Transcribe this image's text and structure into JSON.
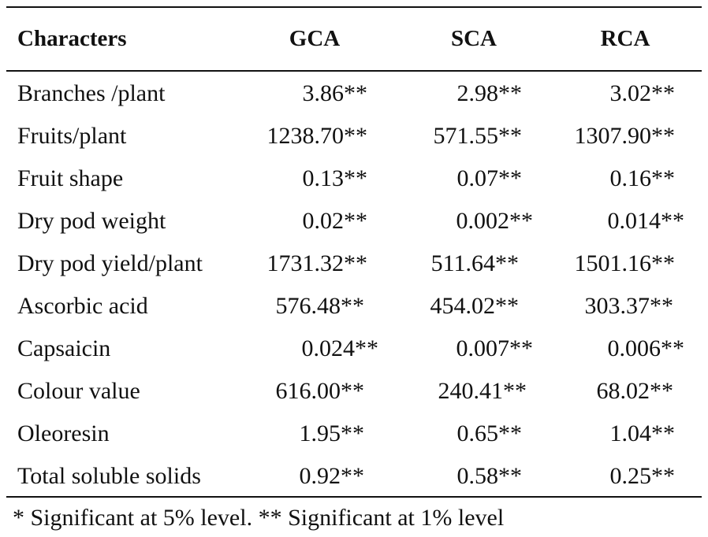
{
  "table": {
    "headers": [
      "Characters",
      "GCA",
      "SCA",
      "RCA"
    ],
    "rows": [
      [
        "Branches /plant",
        "3.86**",
        "2.98**",
        "3.02**"
      ],
      [
        "Fruits/plant",
        "1238.70**",
        "571.55**",
        "1307.90**"
      ],
      [
        "Fruit shape",
        "0.13**",
        "0.07**",
        "0.16**"
      ],
      [
        "Dry pod weight",
        "0.02**",
        "0.002**",
        "0.014**"
      ],
      [
        "Dry pod yield/plant",
        "1731.32**",
        "511.64**",
        "1501.16**"
      ],
      [
        "Ascorbic acid",
        "576.48**",
        "454.02**",
        "303.37**"
      ],
      [
        "Capsaicin",
        "0.024**",
        "0.007**",
        "0.006**"
      ],
      [
        "Colour value",
        "616.00**",
        "240.41**",
        "68.02**"
      ],
      [
        "Oleoresin",
        "1.95**",
        "0.65**",
        "1.04**"
      ],
      [
        "Total soluble solids",
        "0.92**",
        "0.58**",
        "0.25**"
      ]
    ],
    "footnote": "* Significant at 5% level. ** Significant at 1% level"
  }
}
